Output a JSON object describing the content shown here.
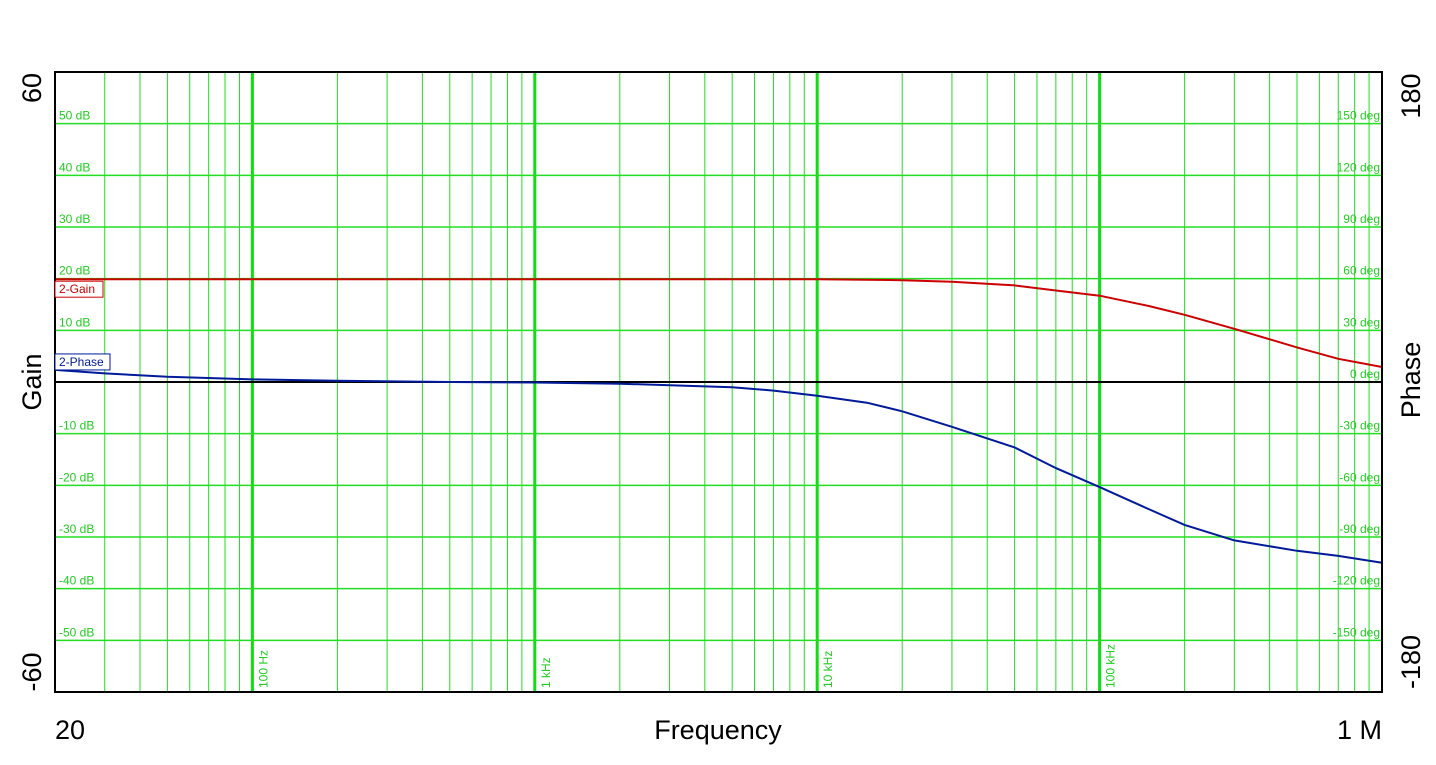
{
  "chart_data": {
    "type": "line",
    "title": "",
    "xlabel": "Frequency",
    "x_scale": "log",
    "xlim": [
      20,
      1000000
    ],
    "x_end_labels": [
      "20",
      "1 M"
    ],
    "x_decade_labels": [
      {
        "value": 100,
        "label": "100 Hz"
      },
      {
        "value": 1000,
        "label": "1 kHz"
      },
      {
        "value": 10000,
        "label": "10 kHz"
      },
      {
        "value": 100000,
        "label": "100 kHz"
      }
    ],
    "y_left": {
      "label": "Gain",
      "label_color": "#dd0000",
      "lim": [
        -60,
        60
      ],
      "end_labels": [
        "60",
        "-60"
      ],
      "tick_values": [
        50,
        40,
        30,
        20,
        10,
        -10,
        -20,
        -30,
        -40,
        -50
      ],
      "tick_labels": [
        "50 dB",
        "40 dB",
        "30 dB",
        "20 dB",
        "10 dB",
        "-10 dB",
        "-20 dB",
        "-30 dB",
        "-40 dB",
        "-50 dB"
      ]
    },
    "y_right": {
      "label": "Phase",
      "label_color": "#0000cc",
      "lim": [
        -180,
        180
      ],
      "end_labels": [
        "180",
        "-180"
      ],
      "tick_values": [
        150,
        120,
        90,
        60,
        30,
        0,
        -30,
        -60,
        -90,
        -120,
        -150
      ],
      "tick_labels": [
        "150 deg",
        "120 deg",
        "90 deg",
        "60 deg",
        "30 deg",
        "0 deg",
        "-30 deg",
        "-60 deg",
        "-90 deg",
        "-120 deg",
        "-150 deg"
      ]
    },
    "grid": true,
    "grid_color": "#22dd22",
    "zero_line_color": "#000000",
    "series": [
      {
        "name": "2-Gain",
        "axis": "left",
        "color": "#cc0000",
        "x": [
          20,
          100,
          1000,
          10000,
          20000,
          30000,
          50000,
          70000,
          100000,
          150000,
          200000,
          300000,
          500000,
          700000,
          1000000
        ],
        "y": [
          19.9,
          19.9,
          19.9,
          19.9,
          19.7,
          19.4,
          18.7,
          17.7,
          16.7,
          14.7,
          13.0,
          10.3,
          6.7,
          4.5,
          2.9
        ]
      },
      {
        "name": "2-Phase",
        "axis": "right",
        "color": "#001a99",
        "x": [
          20,
          30,
          50,
          100,
          200,
          500,
          1000,
          2000,
          5000,
          7000,
          10000,
          15000,
          20000,
          30000,
          50000,
          70000,
          100000,
          150000,
          200000,
          300000,
          500000,
          700000,
          1000000
        ],
        "y": [
          7,
          5,
          3,
          1.5,
          0.7,
          0,
          -0.3,
          -1,
          -3,
          -5,
          -8,
          -12,
          -17,
          -26,
          -38,
          -50,
          -61,
          -74,
          -83,
          -92,
          -98,
          -101,
          -105
        ]
      }
    ]
  }
}
